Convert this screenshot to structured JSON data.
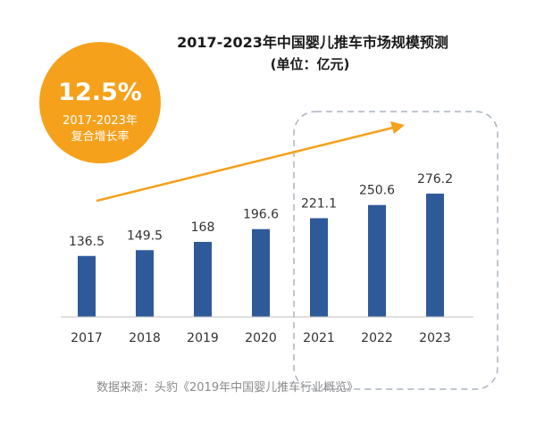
{
  "chart_data": {
    "type": "bar",
    "title": "2017-2023年中国婴儿推车市场规模预测",
    "subtitle": "(单位：亿元)",
    "categories": [
      "2017",
      "2018",
      "2019",
      "2020",
      "2021",
      "2022",
      "2023"
    ],
    "values": [
      136.5,
      149.5,
      168,
      196.6,
      221.1,
      250.6,
      276.2
    ],
    "value_labels": [
      "136.5",
      "149.5",
      "168",
      "196.6",
      "221.1",
      "250.6",
      "276.2"
    ],
    "forecast_categories": [
      "2021",
      "2022",
      "2023"
    ],
    "grid": false,
    "legend": "none"
  },
  "badge": {
    "rate": "12.5%",
    "line1": "2017-2023年",
    "line2": "复合增长率"
  },
  "source": "数据来源：头豹《2019年中国婴儿推车行业概览》",
  "colors": {
    "bar": "#2e5a9a",
    "badge": "#f5a11c",
    "arrow": "#f5a11c",
    "axis": "#bfbfbf",
    "forecast_box": "#aab4c2"
  }
}
